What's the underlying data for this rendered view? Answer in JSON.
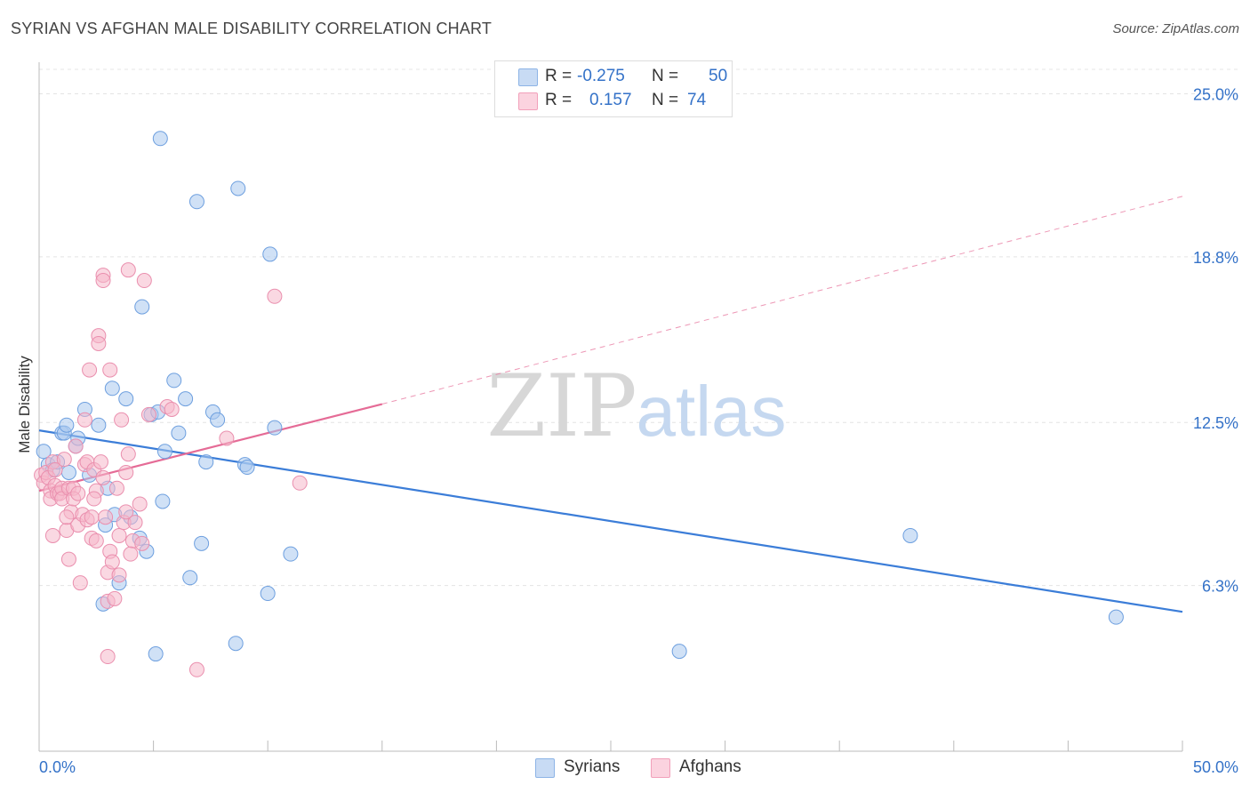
{
  "title": "SYRIAN VS AFGHAN MALE DISABILITY CORRELATION CHART",
  "source": "Source: ZipAtlas.com",
  "watermark": {
    "zip": "ZIP",
    "atlas": "atlas"
  },
  "legend": {
    "rows": [
      {
        "r_label": "R =",
        "r_value": "-0.275",
        "n_label": "N =",
        "n_value": "50",
        "color": "#a9c8ee"
      },
      {
        "r_label": "R =",
        "r_value": "0.157",
        "n_label": "N =",
        "n_value": "74",
        "color": "#f6b8cb"
      }
    ]
  },
  "bottom_legend": {
    "syrians": "Syrians",
    "afghans": "Afghans"
  },
  "colors": {
    "blue": "#3b7dd8",
    "blue_fill": "#a9c8ee",
    "pink": "#e56b96",
    "pink_fill": "#f6b8cb",
    "tick_blue": "#3472c8"
  },
  "chart_data": {
    "type": "scatter",
    "title": "SYRIAN VS AFGHAN MALE DISABILITY CORRELATION CHART",
    "xlabel": "",
    "ylabel": "Male Disability",
    "xlim": [
      0,
      50
    ],
    "ylim": [
      0,
      26.2
    ],
    "x_tick_labels": [
      "0.0%",
      "50.0%"
    ],
    "y_ticks": [
      6.3,
      12.5,
      18.8,
      25.0
    ],
    "y_tick_labels": [
      "6.3%",
      "12.5%",
      "18.8%",
      "25.0%"
    ],
    "legend_position": "top-center",
    "series": [
      {
        "name": "Syrians",
        "color": "#3b7dd8",
        "points": [
          [
            0.2,
            11.4
          ],
          [
            0.4,
            10.9
          ],
          [
            0.6,
            10.7
          ],
          [
            0.8,
            11.0
          ],
          [
            1.0,
            12.1
          ],
          [
            1.1,
            12.1
          ],
          [
            1.2,
            12.4
          ],
          [
            1.3,
            10.6
          ],
          [
            1.6,
            11.6
          ],
          [
            1.7,
            11.9
          ],
          [
            2.0,
            13.0
          ],
          [
            2.2,
            10.5
          ],
          [
            2.6,
            12.4
          ],
          [
            2.8,
            5.6
          ],
          [
            2.9,
            8.6
          ],
          [
            3.2,
            13.8
          ],
          [
            3.3,
            9.0
          ],
          [
            3.5,
            6.4
          ],
          [
            3.8,
            13.4
          ],
          [
            4.0,
            8.9
          ],
          [
            4.4,
            8.1
          ],
          [
            4.5,
            16.9
          ],
          [
            4.7,
            7.6
          ],
          [
            4.9,
            12.8
          ],
          [
            5.1,
            3.7
          ],
          [
            5.3,
            23.3
          ],
          [
            5.4,
            9.5
          ],
          [
            5.5,
            11.4
          ],
          [
            5.9,
            14.1
          ],
          [
            6.1,
            12.1
          ],
          [
            6.4,
            13.4
          ],
          [
            6.6,
            6.6
          ],
          [
            6.9,
            20.9
          ],
          [
            7.1,
            7.9
          ],
          [
            7.3,
            11.0
          ],
          [
            7.6,
            12.9
          ],
          [
            7.8,
            12.6
          ],
          [
            8.6,
            4.1
          ],
          [
            8.7,
            21.4
          ],
          [
            9.0,
            10.9
          ],
          [
            9.1,
            10.8
          ],
          [
            10.0,
            6.0
          ],
          [
            10.1,
            18.9
          ],
          [
            10.3,
            12.3
          ],
          [
            11.0,
            7.5
          ],
          [
            5.2,
            12.9
          ],
          [
            28.0,
            3.8
          ],
          [
            38.1,
            8.2
          ],
          [
            47.1,
            5.1
          ],
          [
            3.0,
            10.0
          ]
        ]
      },
      {
        "name": "Afghans",
        "color": "#e56b96",
        "points": [
          [
            0.1,
            10.5
          ],
          [
            0.2,
            10.2
          ],
          [
            0.3,
            10.6
          ],
          [
            0.4,
            10.4
          ],
          [
            0.5,
            9.9
          ],
          [
            0.5,
            9.6
          ],
          [
            0.6,
            11.0
          ],
          [
            0.6,
            8.2
          ],
          [
            0.7,
            10.1
          ],
          [
            0.7,
            10.7
          ],
          [
            0.8,
            9.8
          ],
          [
            0.9,
            9.8
          ],
          [
            1.0,
            10.0
          ],
          [
            1.0,
            9.6
          ],
          [
            1.1,
            11.1
          ],
          [
            1.2,
            8.4
          ],
          [
            1.3,
            10.0
          ],
          [
            1.3,
            7.3
          ],
          [
            1.4,
            9.1
          ],
          [
            1.5,
            10.0
          ],
          [
            1.5,
            9.6
          ],
          [
            1.6,
            11.6
          ],
          [
            1.7,
            9.8
          ],
          [
            1.7,
            8.6
          ],
          [
            1.8,
            6.4
          ],
          [
            1.9,
            9.0
          ],
          [
            2.0,
            10.9
          ],
          [
            2.0,
            12.6
          ],
          [
            2.1,
            11.0
          ],
          [
            2.1,
            8.8
          ],
          [
            2.2,
            14.5
          ],
          [
            2.3,
            8.9
          ],
          [
            2.3,
            8.1
          ],
          [
            2.4,
            10.7
          ],
          [
            2.5,
            9.9
          ],
          [
            2.5,
            8.0
          ],
          [
            2.6,
            15.8
          ],
          [
            2.6,
            15.5
          ],
          [
            2.7,
            11.0
          ],
          [
            2.8,
            10.4
          ],
          [
            2.8,
            18.1
          ],
          [
            2.8,
            17.9
          ],
          [
            2.9,
            8.9
          ],
          [
            3.0,
            6.8
          ],
          [
            3.0,
            5.7
          ],
          [
            3.0,
            3.6
          ],
          [
            3.1,
            7.6
          ],
          [
            3.1,
            14.5
          ],
          [
            3.2,
            7.2
          ],
          [
            3.3,
            5.8
          ],
          [
            3.4,
            10.0
          ],
          [
            3.5,
            8.2
          ],
          [
            3.5,
            6.7
          ],
          [
            3.6,
            12.6
          ],
          [
            3.7,
            8.7
          ],
          [
            3.8,
            9.1
          ],
          [
            3.8,
            10.6
          ],
          [
            3.9,
            11.3
          ],
          [
            3.9,
            18.3
          ],
          [
            4.1,
            8.0
          ],
          [
            4.2,
            8.7
          ],
          [
            4.4,
            9.4
          ],
          [
            4.5,
            7.9
          ],
          [
            4.6,
            17.9
          ],
          [
            4.8,
            12.8
          ],
          [
            5.6,
            13.1
          ],
          [
            5.8,
            13.0
          ],
          [
            6.9,
            3.1
          ],
          [
            8.2,
            11.9
          ],
          [
            10.3,
            17.3
          ],
          [
            11.4,
            10.2
          ],
          [
            4.0,
            7.5
          ],
          [
            2.4,
            9.6
          ],
          [
            1.2,
            8.9
          ]
        ]
      }
    ],
    "trend_lines": [
      {
        "series": "Syrians",
        "x": [
          0,
          50
        ],
        "y": [
          12.2,
          5.3
        ],
        "style": "solid"
      },
      {
        "series": "Afghans",
        "x": [
          0,
          15
        ],
        "y": [
          9.9,
          13.2
        ],
        "style": "solid"
      },
      {
        "series": "Afghans",
        "x": [
          15,
          50
        ],
        "y": [
          13.2,
          21.1
        ],
        "style": "dashed"
      }
    ]
  }
}
